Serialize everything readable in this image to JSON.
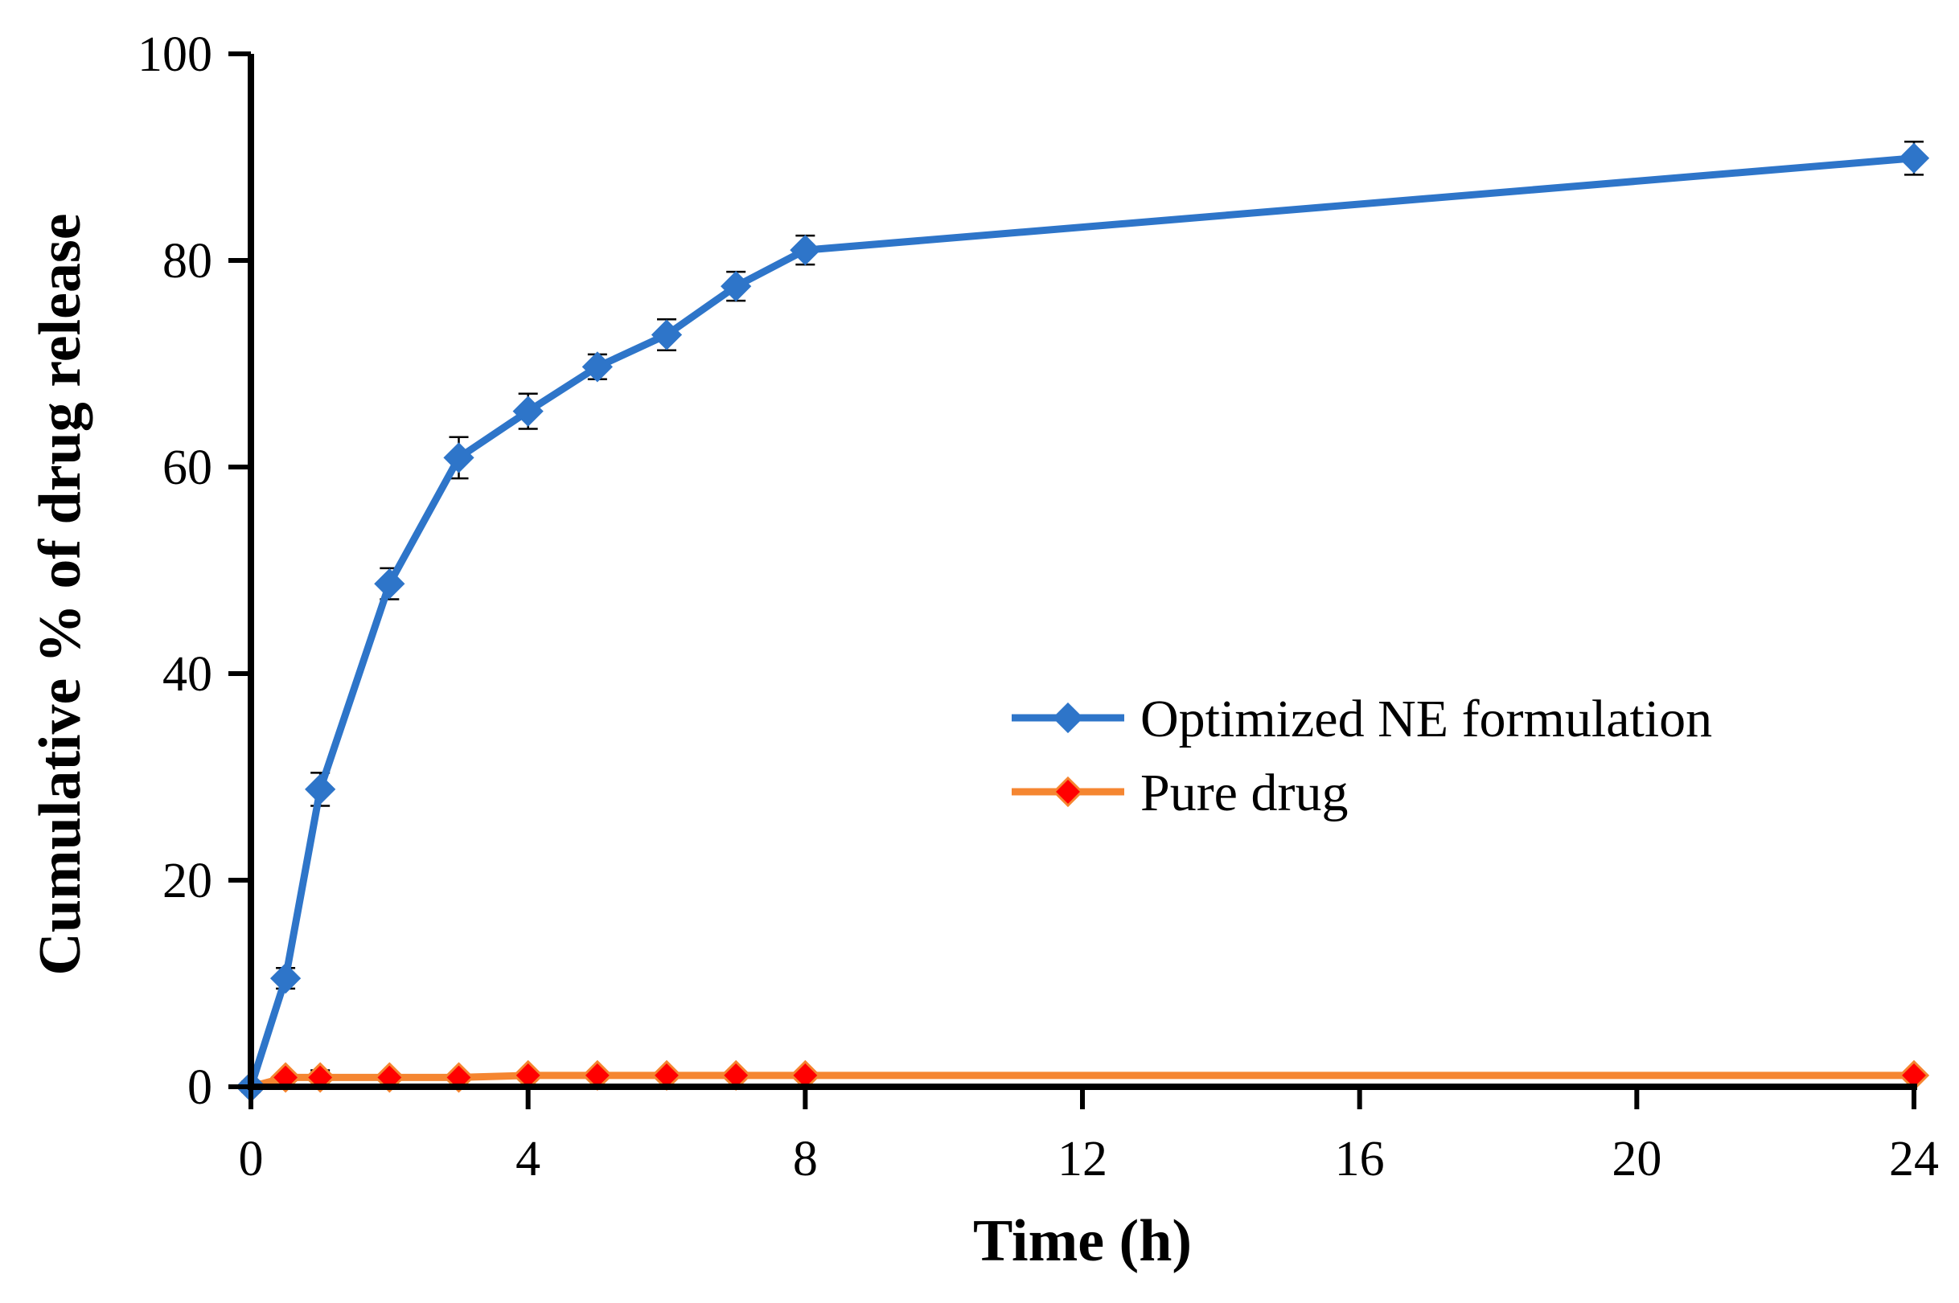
{
  "chart_data": {
    "type": "line",
    "title": "",
    "xlabel": "Time (h)",
    "ylabel": "Cumulative % of drug release",
    "xlim": [
      0,
      24
    ],
    "ylim": [
      0,
      100
    ],
    "xticks": [
      0,
      4,
      8,
      12,
      16,
      20,
      24
    ],
    "yticks": [
      0,
      20,
      40,
      60,
      80,
      100
    ],
    "grid": false,
    "legend_position": "center-right",
    "series": [
      {
        "name": "Optimized NE formulation",
        "color": "#2e75c9",
        "marker_color": "#2e75c9",
        "x": [
          0,
          0.5,
          1,
          2,
          3,
          4,
          5,
          6,
          7,
          8,
          24
        ],
        "y": [
          0,
          10.5,
          28.8,
          48.7,
          60.9,
          65.4,
          69.7,
          72.8,
          77.5,
          81.0,
          89.9
        ],
        "error": [
          0.5,
          1.0,
          1.6,
          1.5,
          2.0,
          1.7,
          1.2,
          1.5,
          1.4,
          1.4,
          1.6
        ]
      },
      {
        "name": "Pure drug",
        "color": "#f58631",
        "marker_color": "#ff0000",
        "x": [
          0,
          0.5,
          1,
          2,
          3,
          4,
          5,
          6,
          7,
          8,
          24
        ],
        "y": [
          0,
          0.9,
          0.9,
          0.9,
          0.9,
          1.1,
          1.1,
          1.1,
          1.1,
          1.1,
          1.1
        ],
        "error": [
          0.2,
          0.4,
          0.7,
          0.4,
          0.4,
          0.4,
          0.4,
          0.4,
          0.4,
          0.4,
          0.4
        ]
      }
    ]
  }
}
